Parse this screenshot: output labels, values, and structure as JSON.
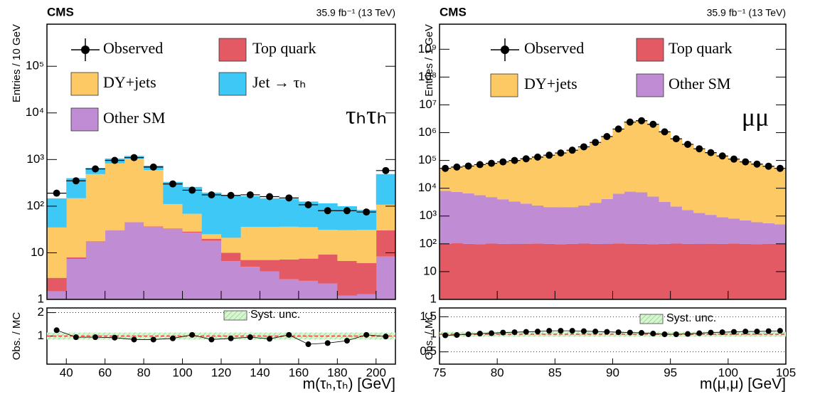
{
  "chart_data": [
    {
      "type": "histogram",
      "stacked": true,
      "log_scale": true,
      "title": "CMS",
      "subtitle": "35.9 fb⁻¹ (13 TeV)",
      "annotation": "τₕτₕ",
      "xlabel": "m(τₕ,τₕ) [GeV]",
      "ylabel": "Entries / 10 GeV",
      "bins": [
        30,
        40,
        50,
        60,
        70,
        80,
        90,
        100,
        110,
        120,
        130,
        140,
        150,
        160,
        170,
        180,
        190,
        200,
        210
      ],
      "xlim": [
        30,
        210
      ],
      "xticks": [
        40,
        60,
        80,
        100,
        120,
        140,
        160,
        180,
        200
      ],
      "ylim": [
        1,
        800000
      ],
      "yticks": [
        1,
        10,
        {
          "value": 100,
          "label": "10²"
        },
        {
          "value": 1000,
          "label": "10³"
        },
        {
          "value": 10000,
          "label": "10⁴"
        },
        {
          "value": 100000,
          "label": "10⁵"
        }
      ],
      "series": [
        {
          "name": "Other SM",
          "color": "#c08cd4",
          "values": [
            1.5,
            7.4,
            17,
            30,
            45,
            36,
            32,
            27,
            18,
            6.6,
            5,
            4,
            2.7,
            2.5,
            2.2,
            1.2,
            1.3,
            8.3
          ]
        },
        {
          "name": "Top quark",
          "color": "#e45a64",
          "values": [
            1.4,
            0.6,
            0.5,
            0.5,
            0.6,
            0.8,
            1,
            1.5,
            2,
            3.4,
            2,
            3,
            4.5,
            5,
            7,
            5.5,
            4.7,
            22
          ]
        },
        {
          "name": "DY+jets",
          "color": "#fdc965",
          "values": [
            32,
            140,
            470,
            800,
            1000,
            560,
            78,
            40,
            5,
            11,
            29,
            29,
            29,
            28,
            22,
            24,
            25,
            77
          ]
        },
        {
          "name": "Jet → τₕ",
          "color": "#3dc8f5",
          "values": [
            112,
            250,
            170,
            220,
            150,
            140,
            220,
            190,
            170,
            150,
            127,
            111,
            107,
            90,
            84,
            69,
            52,
            380
          ]
        }
      ],
      "observed": {
        "name": "Observed",
        "color": "#000000",
        "values": [
          190,
          350,
          630,
          960,
          1100,
          690,
          300,
          220,
          175,
          170,
          175,
          160,
          150,
          107,
          80,
          80,
          75,
          580
        ]
      },
      "ratio": {
        "ylabel": "Obs. / MC",
        "ylim": [
          -0.2,
          2.2
        ],
        "yticks": [
          1,
          2
        ],
        "reference": 1,
        "band_name": "Syst. unc.",
        "band": [
          0.85,
          1.15
        ],
        "band_color": "#b8eab0",
        "values": [
          1.25,
          0.95,
          0.95,
          0.93,
          0.85,
          0.85,
          0.9,
          1.05,
          0.85,
          0.9,
          0.95,
          0.88,
          1.05,
          0.65,
          0.7,
          0.8,
          1.05,
          0.98
        ]
      }
    },
    {
      "type": "histogram",
      "stacked": true,
      "log_scale": true,
      "title": "CMS",
      "subtitle": "35.9 fb⁻¹ (13 TeV)",
      "annotation": "μμ",
      "xlabel": "m(μ,μ) [GeV]",
      "ylabel": "Entries / 1 GeV",
      "bins": [
        75,
        76,
        77,
        78,
        79,
        80,
        81,
        82,
        83,
        84,
        85,
        86,
        87,
        88,
        89,
        90,
        91,
        92,
        93,
        94,
        95,
        96,
        97,
        98,
        99,
        100,
        101,
        102,
        103,
        104,
        105
      ],
      "xlim": [
        75,
        105
      ],
      "xticks": [
        75,
        80,
        85,
        90,
        95,
        100,
        105
      ],
      "ylim": [
        1,
        8000000000
      ],
      "yticks": [
        1,
        10,
        {
          "value": 100,
          "label": "10²"
        },
        {
          "value": 1000,
          "label": "10³"
        },
        {
          "value": 10000,
          "label": "10⁴"
        },
        {
          "value": 100000,
          "label": "10⁵"
        },
        {
          "value": 1000000,
          "label": "10⁶"
        },
        {
          "value": 10000000,
          "label": "10⁷"
        },
        {
          "value": 100000000,
          "label": "10⁸"
        },
        {
          "value": 1000000000,
          "label": "10⁹"
        }
      ],
      "series": [
        {
          "name": "Top quark",
          "color": "#e45a64",
          "values": [
            100,
            105,
            100,
            98,
            102,
            100,
            99,
            101,
            103,
            100,
            97,
            100,
            102,
            100,
            99,
            104,
            101,
            100,
            98,
            100,
            102,
            100,
            99,
            101,
            100,
            103,
            100,
            98,
            101,
            100
          ]
        },
        {
          "name": "Other SM",
          "color": "#c08cd4",
          "values": [
            7900,
            7300,
            6500,
            5500,
            4700,
            3900,
            3200,
            2700,
            2300,
            2000,
            2000,
            2000,
            2300,
            2900,
            4000,
            6200,
            7500,
            7000,
            4900,
            3100,
            2100,
            1550,
            1200,
            1000,
            800,
            700,
            600,
            500,
            450,
            400
          ]
        },
        {
          "name": "DY+jets",
          "color": "#fdc965",
          "values": [
            44000,
            50600,
            56400,
            65400,
            74200,
            85000,
            96700,
            112000,
            130000,
            153000,
            184000,
            232000,
            307000,
            444000,
            720000,
            1340000,
            2390000,
            2680000,
            2000000,
            1070000,
            601000,
            378000,
            262000,
            190000,
            144000,
            111000,
            88300,
            73400,
            61500,
            51500
          ]
        }
      ],
      "observed": {
        "name": "Observed",
        "color": "#000000",
        "values": [
          52000,
          58000,
          63000,
          71000,
          79000,
          89000,
          100000,
          115000,
          132000,
          155000,
          186000,
          234000,
          309000,
          447000,
          724000,
          1350000,
          2400000,
          2690000,
          2000000,
          1070000,
          603000,
          380000,
          263000,
          191000,
          145000,
          112000,
          89000,
          74000,
          62000,
          52000
        ]
      },
      "ratio": {
        "ylabel": "Obs. / MC",
        "ylim": [
          0.15,
          1.75
        ],
        "yticks": [
          0.5,
          1,
          1.5
        ],
        "reference": 1,
        "band_name": "Syst. unc.",
        "band": [
          0.93,
          1.07
        ],
        "band_color": "#b8eab0",
        "values": [
          0.97,
          0.98,
          1.0,
          1.02,
          1.03,
          1.05,
          1.06,
          1.07,
          1.08,
          1.1,
          1.1,
          1.1,
          1.09,
          1.08,
          1.07,
          1.06,
          1.05,
          1.04,
          1.02,
          1.0,
          1.0,
          1.01,
          1.03,
          1.05,
          1.06,
          1.07,
          1.08,
          1.08,
          1.09,
          1.1
        ]
      }
    }
  ]
}
